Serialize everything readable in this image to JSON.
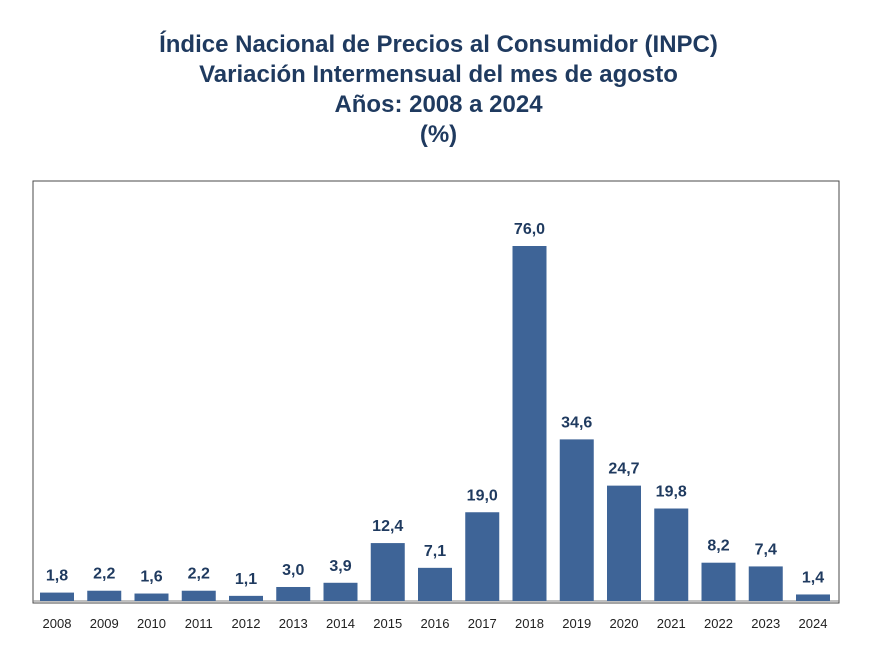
{
  "header": {
    "title_line1": "Índice Nacional de Precios al Consumidor (INPC)",
    "title_line2": "Variación Intermensual del mes de agosto",
    "title_line3": "Años: 2008 a 2024",
    "title_line4": "(%)"
  },
  "colors": {
    "bar": "#3e6497",
    "title": "#1f3a5f",
    "value_label": "#1f3a5f"
  },
  "chart_data": {
    "type": "bar",
    "title": "Índice Nacional de Precios al Consumidor (INPC) Variación Intermensual del mes de agosto Años: 2008 a 2024 (%)",
    "xlabel": "",
    "ylabel": "",
    "grid": false,
    "legend": "none",
    "categories": [
      "2008",
      "2009",
      "2010",
      "2011",
      "2012",
      "2013",
      "2014",
      "2015",
      "2016",
      "2017",
      "2018",
      "2019",
      "2020",
      "2021",
      "2022",
      "2023",
      "2024"
    ],
    "values": [
      1.8,
      2.2,
      1.6,
      2.2,
      1.1,
      3.0,
      3.9,
      12.4,
      7.1,
      19.0,
      76.0,
      34.6,
      24.7,
      19.8,
      8.2,
      7.4,
      1.4
    ],
    "value_labels": [
      "1,8",
      "2,2",
      "1,6",
      "2,2",
      "1,1",
      "3,0",
      "3,9",
      "12,4",
      "7,1",
      "19,0",
      "76,0",
      "34,6",
      "24,7",
      "19,8",
      "8,2",
      "7,4",
      "1,4"
    ]
  }
}
